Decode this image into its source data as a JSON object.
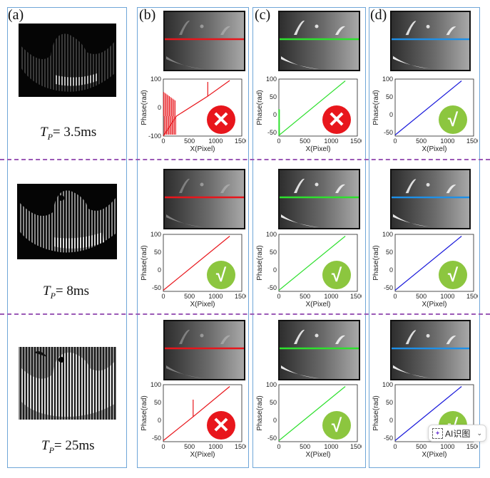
{
  "figure": {
    "panel_labels": [
      "(a)",
      "(b)",
      "(c)",
      "(d)"
    ],
    "rows": [
      {
        "tp_symbol": "T",
        "tp_sub": "P",
        "tp_value": "=  3.5ms"
      },
      {
        "tp_symbol": "T",
        "tp_sub": "P",
        "tp_value": "=  8ms"
      },
      {
        "tp_symbol": "T",
        "tp_sub": "P",
        "tp_value": "= 25ms"
      }
    ],
    "columns": [
      {
        "id": "b",
        "line_color": "#e8161c",
        "results": [
          "fail",
          "pass",
          "fail"
        ]
      },
      {
        "id": "c",
        "line_color": "#2ee02e",
        "results": [
          "fail",
          "pass",
          "pass"
        ]
      },
      {
        "id": "d",
        "line_color": "#1a1adb",
        "results": [
          "pass",
          "pass",
          "pass"
        ],
        "scanline_color": "#1e90e8"
      }
    ],
    "badge_symbols": {
      "fail": "✕",
      "pass": "√"
    },
    "colors": {
      "frame": "#6fa6d8",
      "divider": "#9b59b6",
      "fail": "#e8161c",
      "pass": "#8cc63f"
    }
  },
  "chart_data": [
    {
      "type": "line",
      "panel": "b-row1",
      "xlabel": "X(Pixel)",
      "ylabel": "Phase(rad)",
      "xlim": [
        0,
        1500
      ],
      "ylim": [
        -100,
        100
      ],
      "xticks": [
        0,
        500,
        1000,
        1500
      ],
      "yticks": [
        -100,
        0,
        100
      ],
      "description": "noisy spikes 0-250 then linear from -30 to 95, spike at x≈850",
      "series": [
        {
          "name": "phase",
          "color": "#e8161c",
          "x": [
            0,
            250,
            850,
            850,
            850,
            1270
          ],
          "y": [
            -100,
            -30,
            40,
            90,
            40,
            95
          ]
        }
      ]
    },
    {
      "type": "line",
      "panel": "c-row1",
      "xlabel": "X(Pixel)",
      "ylabel": "Phase(rad)",
      "xlim": [
        0,
        1500
      ],
      "ylim": [
        -60,
        100
      ],
      "xticks": [
        0,
        500,
        1000,
        1500
      ],
      "yticks": [
        -50,
        0,
        50,
        100
      ],
      "series": [
        {
          "name": "phase",
          "color": "#2ee02e",
          "x": [
            0,
            10,
            1270
          ],
          "y": [
            15,
            -57,
            95
          ]
        }
      ]
    },
    {
      "type": "line",
      "panel": "d-row1",
      "xlabel": "X(Pixel)",
      "ylabel": "Phase(rad)",
      "xlim": [
        0,
        1500
      ],
      "ylim": [
        -60,
        100
      ],
      "xticks": [
        0,
        500,
        1000,
        1500
      ],
      "yticks": [
        -50,
        0,
        50,
        100
      ],
      "series": [
        {
          "name": "phase",
          "color": "#1a1adb",
          "x": [
            0,
            1270
          ],
          "y": [
            -57,
            95
          ]
        }
      ]
    },
    {
      "type": "line",
      "panel": "b-row2",
      "xlabel": "X(Pixel)",
      "ylabel": "Phase(rad)",
      "xlim": [
        0,
        1500
      ],
      "ylim": [
        -60,
        100
      ],
      "xticks": [
        0,
        500,
        1000,
        1500
      ],
      "yticks": [
        -50,
        0,
        50,
        100
      ],
      "series": [
        {
          "name": "phase",
          "color": "#e8161c",
          "x": [
            0,
            1270
          ],
          "y": [
            -57,
            95
          ]
        }
      ]
    },
    {
      "type": "line",
      "panel": "c-row2",
      "xlabel": "X(Pixel)",
      "ylabel": "Phase(rad)",
      "xlim": [
        0,
        1500
      ],
      "ylim": [
        -60,
        100
      ],
      "xticks": [
        0,
        500,
        1000,
        1500
      ],
      "yticks": [
        -50,
        0,
        50,
        100
      ],
      "series": [
        {
          "name": "phase",
          "color": "#2ee02e",
          "x": [
            0,
            1270
          ],
          "y": [
            -57,
            95
          ]
        }
      ]
    },
    {
      "type": "line",
      "panel": "d-row2",
      "xlabel": "X(Pixel)",
      "ylabel": "Phase(rad)",
      "xlim": [
        0,
        1500
      ],
      "ylim": [
        -60,
        100
      ],
      "xticks": [
        0,
        500,
        1000,
        1500
      ],
      "yticks": [
        -50,
        0,
        50,
        100
      ],
      "series": [
        {
          "name": "phase",
          "color": "#1a1adb",
          "x": [
            0,
            1270
          ],
          "y": [
            -57,
            95
          ]
        }
      ]
    },
    {
      "type": "line",
      "panel": "b-row3",
      "xlabel": "X(Pixel)",
      "ylabel": "Phase(rad)",
      "xlim": [
        0,
        1500
      ],
      "ylim": [
        -60,
        100
      ],
      "xticks": [
        0,
        500,
        1000,
        1500
      ],
      "yticks": [
        -50,
        0,
        50,
        100
      ],
      "description": "linear with spike at x≈570 to 58",
      "series": [
        {
          "name": "phase",
          "color": "#e8161c",
          "x": [
            0,
            570,
            570,
            570,
            1270
          ],
          "y": [
            -57,
            10,
            58,
            10,
            95
          ]
        }
      ]
    },
    {
      "type": "line",
      "panel": "c-row3",
      "xlabel": "X(Pixel)",
      "ylabel": "Phase(rad)",
      "xlim": [
        0,
        1500
      ],
      "ylim": [
        -60,
        100
      ],
      "xticks": [
        0,
        500,
        1000,
        1500
      ],
      "yticks": [
        -50,
        0,
        50,
        100
      ],
      "series": [
        {
          "name": "phase",
          "color": "#2ee02e",
          "x": [
            0,
            1270
          ],
          "y": [
            -57,
            95
          ]
        }
      ]
    },
    {
      "type": "line",
      "panel": "d-row3",
      "xlabel": "X(Pixel)",
      "ylabel": "Phase(rad)",
      "xlim": [
        0,
        1500
      ],
      "ylim": [
        -60,
        100
      ],
      "xticks": [
        0,
        500,
        1000,
        1500
      ],
      "yticks": [
        -50,
        0,
        50,
        100
      ],
      "series": [
        {
          "name": "phase",
          "color": "#1a1adb",
          "x": [
            0,
            1270
          ],
          "y": [
            -57,
            95
          ]
        }
      ]
    }
  ],
  "overlay": {
    "ai_button_label": "AI识图"
  }
}
